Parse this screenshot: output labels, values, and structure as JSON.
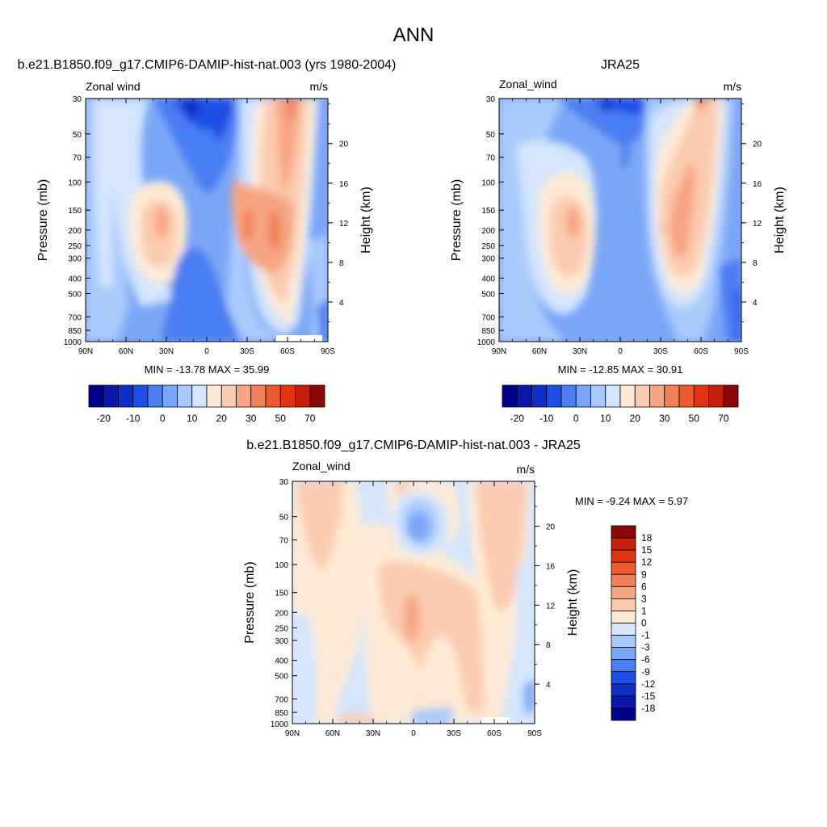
{
  "figure": {
    "title": "ANN"
  },
  "colors": {
    "main_scale": [
      "#00008c",
      "#0a16a8",
      "#0e2fc8",
      "#1e4ee6",
      "#4a7ef2",
      "#79a6f6",
      "#a9c9fb",
      "#d4e6fe",
      "#fde9d4",
      "#fbcbb0",
      "#f7a683",
      "#f18059",
      "#ec5a2d",
      "#e33510",
      "#c51f0b",
      "#8a0808"
    ],
    "diff_scale": [
      "#00008c",
      "#0a16a8",
      "#0e2fc8",
      "#1e4ee6",
      "#4a7ef2",
      "#79a6f6",
      "#a9c9fb",
      "#d4e6fe",
      "#fde9d4",
      "#fbcbb0",
      "#f7a683",
      "#f18059",
      "#ec5a2d",
      "#e33510",
      "#c51f0b",
      "#8a0808"
    ]
  },
  "chart_data": [
    {
      "type": "heatmap",
      "title": "b.e21.B1850.f09_g17.CMIP6-DAMIP-hist-nat.003 (yrs 1980-2004)",
      "left_label": "Zonal wind",
      "right_label": "m/s",
      "ylabel": "Pressure (mb)",
      "ylabel_right": "Height (km)",
      "x_ticks": [
        "90N",
        "60N",
        "30N",
        "0",
        "30S",
        "60S",
        "90S"
      ],
      "y_ticks": [
        "30",
        "50",
        "70",
        "100",
        "150",
        "200",
        "250",
        "300",
        "400",
        "500",
        "700",
        "850",
        "1000"
      ],
      "y_right_ticks": [
        "20",
        "16",
        "12",
        "8",
        "4"
      ],
      "stats": "MIN = -13.78  MAX =  35.99",
      "colorbar_labels": [
        "-20",
        "-10",
        "0",
        "10",
        "20",
        "30",
        "50",
        "70"
      ]
    },
    {
      "type": "heatmap",
      "title": "JRA25",
      "left_label": "Zonal_wind",
      "right_label": "m/s",
      "ylabel": "Pressure (mb)",
      "ylabel_right": "Height (km)",
      "x_ticks": [
        "90N",
        "60N",
        "30N",
        "0",
        "30S",
        "60S",
        "90S"
      ],
      "y_ticks": [
        "30",
        "50",
        "70",
        "100",
        "150",
        "200",
        "250",
        "300",
        "400",
        "500",
        "700",
        "850",
        "1000"
      ],
      "y_right_ticks": [
        "20",
        "16",
        "12",
        "8",
        "4"
      ],
      "stats": "MIN = -12.85  MAX =  30.91",
      "colorbar_labels": [
        "-20",
        "-10",
        "0",
        "10",
        "20",
        "30",
        "50",
        "70"
      ]
    },
    {
      "type": "heatmap",
      "title": "b.e21.B1850.f09_g17.CMIP6-DAMIP-hist-nat.003 - JRA25",
      "left_label": "Zonal_wind",
      "right_label": "m/s",
      "ylabel": "Pressure (mb)",
      "ylabel_right": "Height (km)",
      "x_ticks": [
        "90N",
        "60N",
        "30N",
        "0",
        "30S",
        "60S",
        "90S"
      ],
      "y_ticks": [
        "30",
        "50",
        "70",
        "100",
        "150",
        "200",
        "250",
        "300",
        "400",
        "500",
        "700",
        "850",
        "1000"
      ],
      "y_right_ticks": [
        "20",
        "16",
        "12",
        "8",
        "4"
      ],
      "stats": "MIN =  -9.24  MAX =   5.97",
      "colorbar_labels": [
        "18",
        "15",
        "12",
        "9",
        "6",
        "3",
        "1",
        "0",
        "-1",
        "-3",
        "-6",
        "-9",
        "-12",
        "-15",
        "-18"
      ]
    }
  ]
}
